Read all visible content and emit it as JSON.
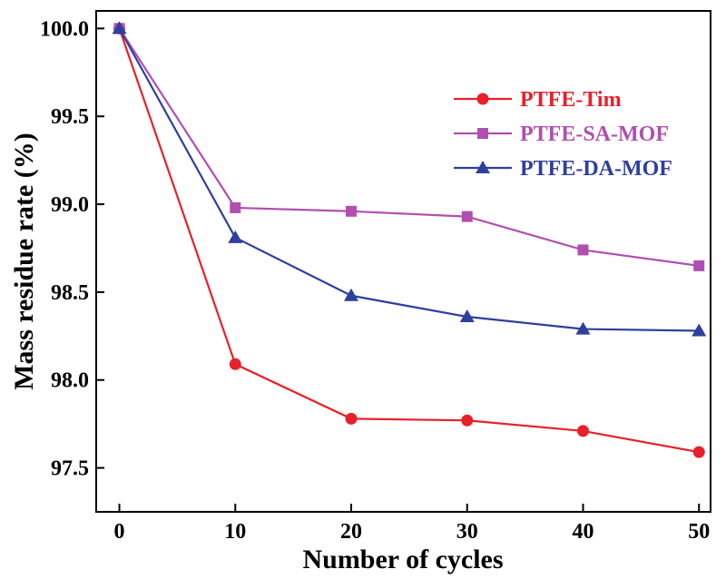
{
  "chart_data": {
    "type": "line",
    "title": "",
    "xlabel": "Number of cycles",
    "ylabel": "Mass residue rate (%)",
    "x": [
      0,
      10,
      20,
      30,
      40,
      50
    ],
    "xticks": [
      "0",
      "10",
      "20",
      "30",
      "40",
      "50"
    ],
    "yticks": [
      "97.5",
      "98.0",
      "98.5",
      "99.0",
      "99.5",
      "100.0"
    ],
    "ytick_values": [
      97.5,
      98.0,
      98.5,
      99.0,
      99.5,
      100.0
    ],
    "xlim": [
      -2,
      51
    ],
    "ylim": [
      97.25,
      100.1
    ],
    "grid": false,
    "legend_position": "upper-right",
    "series": [
      {
        "name": "PTFE-Tim",
        "color": "#e8202a",
        "marker": "circle",
        "values": [
          100.0,
          98.09,
          97.78,
          97.77,
          97.71,
          97.59
        ]
      },
      {
        "name": "PTFE-SA-MOF",
        "color": "#b04fb0",
        "marker": "square",
        "values": [
          100.0,
          98.98,
          98.96,
          98.93,
          98.74,
          98.65
        ]
      },
      {
        "name": "PTFE-DA-MOF",
        "color": "#2e3f9e",
        "marker": "triangle",
        "values": [
          100.0,
          98.81,
          98.48,
          98.36,
          98.29,
          98.28
        ]
      }
    ]
  }
}
